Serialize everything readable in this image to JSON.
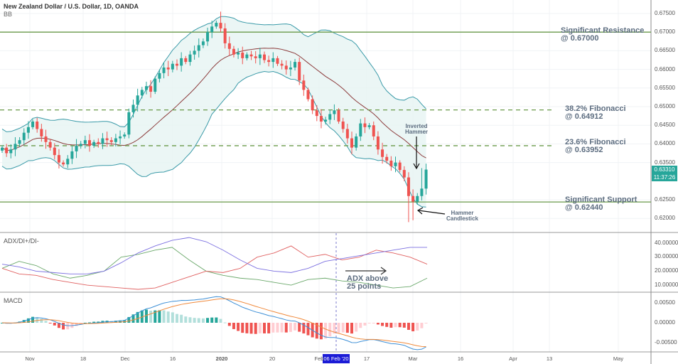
{
  "header": {
    "title": "New Zealand Dollar / U.S. Dollar, 1D, OANDA",
    "indicator": "BB"
  },
  "colors": {
    "up": "#26a69a",
    "down": "#ef5350",
    "band": "#3a9aa8",
    "basis": "#8c3b3b",
    "level": "#6a9a4a",
    "adx": "#7b6fe0",
    "di_plus": "#6aa86a",
    "di_minus": "#e06060",
    "macd": "#3d8fd6",
    "signal": "#f08a3c"
  },
  "annotations": {
    "resistance": [
      "Significant Resistance",
      "@ 0.67000"
    ],
    "fib382": [
      "38.2% Fibonacci",
      "@ 0.64912"
    ],
    "fib236": [
      "23.6% Fibonacci",
      "@ 0.63952"
    ],
    "support": [
      "Significant Support",
      "@ 0.62440"
    ],
    "inverted_hammer": [
      "Inverted",
      "Hammer"
    ],
    "hammer": [
      "Hammer",
      "Candlestick"
    ],
    "adx_note": [
      "ADX above",
      "25 points"
    ]
  },
  "price_tag": {
    "price": "0.63310",
    "countdown": "11:37:26"
  },
  "crosshair_date": "06 Feb '20",
  "panels": {
    "adx": "ADX/DI+/DI-",
    "macd": "MACD"
  },
  "chart_data": {
    "type": "candlestick",
    "title": "New Zealand Dollar / U.S. Dollar, 1D, OANDA",
    "price_ticks": [
      "0.67500",
      "0.67000",
      "0.66500",
      "0.66000",
      "0.65500",
      "0.65000",
      "0.64500",
      "0.64000",
      "0.63500",
      "0.62500",
      "0.62000"
    ],
    "adx_ticks": [
      "40.00000",
      "30.00000",
      "20.00000",
      "10.00000"
    ],
    "macd_ticks": [
      "0.00500",
      "0.00000",
      "-0.00500"
    ],
    "x_ticks": [
      "Nov",
      "18",
      "Dec",
      "16",
      "2020",
      "20",
      "Feb",
      "17",
      "Mar",
      "16",
      "Apr",
      "13",
      "May"
    ],
    "levels": {
      "resistance": 0.67,
      "fib382": 0.64912,
      "fib236": 0.63952,
      "support": 0.6244
    },
    "ylim": [
      0.6175,
      0.677
    ],
    "closes": [
      0.639,
      0.6375,
      0.6385,
      0.64,
      0.641,
      0.643,
      0.6445,
      0.646,
      0.644,
      0.642,
      0.6405,
      0.639,
      0.637,
      0.635,
      0.6345,
      0.636,
      0.638,
      0.6395,
      0.64,
      0.641,
      0.6395,
      0.6405,
      0.64,
      0.6415,
      0.641,
      0.6405,
      0.6415,
      0.642,
      0.6425,
      0.6485,
      0.6505,
      0.653,
      0.6545,
      0.6555,
      0.654,
      0.6575,
      0.659,
      0.6605,
      0.66,
      0.6615,
      0.661,
      0.663,
      0.662,
      0.664,
      0.665,
      0.6665,
      0.6675,
      0.67,
      0.6715,
      0.6725,
      0.671,
      0.667,
      0.6655,
      0.664,
      0.6645,
      0.663,
      0.664,
      0.6635,
      0.663,
      0.664,
      0.6625,
      0.662,
      0.663,
      0.6615,
      0.661,
      0.66,
      0.6605,
      0.662,
      0.657,
      0.6545,
      0.652,
      0.649,
      0.6475,
      0.646,
      0.6465,
      0.648,
      0.649,
      0.646,
      0.644,
      0.6415,
      0.639,
      0.642,
      0.6455,
      0.6445,
      0.645,
      0.642,
      0.6385,
      0.6365,
      0.6355,
      0.634,
      0.635,
      0.633,
      0.631,
      0.626,
      0.6245,
      0.626,
      0.628,
      0.6331
    ],
    "low_overrides": {
      "93": 0.619,
      "94": 0.6195
    },
    "high_overrides": {
      "96": 0.6335,
      "50": 0.6755
    },
    "adx": [
      25,
      23,
      20,
      19,
      18,
      18,
      20,
      26,
      33,
      38,
      42,
      44,
      41,
      35,
      28,
      22,
      20,
      19,
      22,
      27,
      29,
      31,
      33,
      35,
      37,
      37
    ],
    "di_plus": [
      22,
      27,
      24,
      18,
      15,
      17,
      20,
      30,
      32,
      35,
      37,
      28,
      20,
      17,
      15,
      14,
      12,
      10,
      14,
      15,
      13,
      12,
      10,
      8,
      9,
      15
    ],
    "di_minus": [
      22,
      18,
      17,
      14,
      12,
      10,
      9,
      8,
      7,
      8,
      12,
      16,
      20,
      19,
      22,
      30,
      33,
      38,
      30,
      32,
      28,
      30,
      35,
      33,
      30,
      25
    ]
  }
}
